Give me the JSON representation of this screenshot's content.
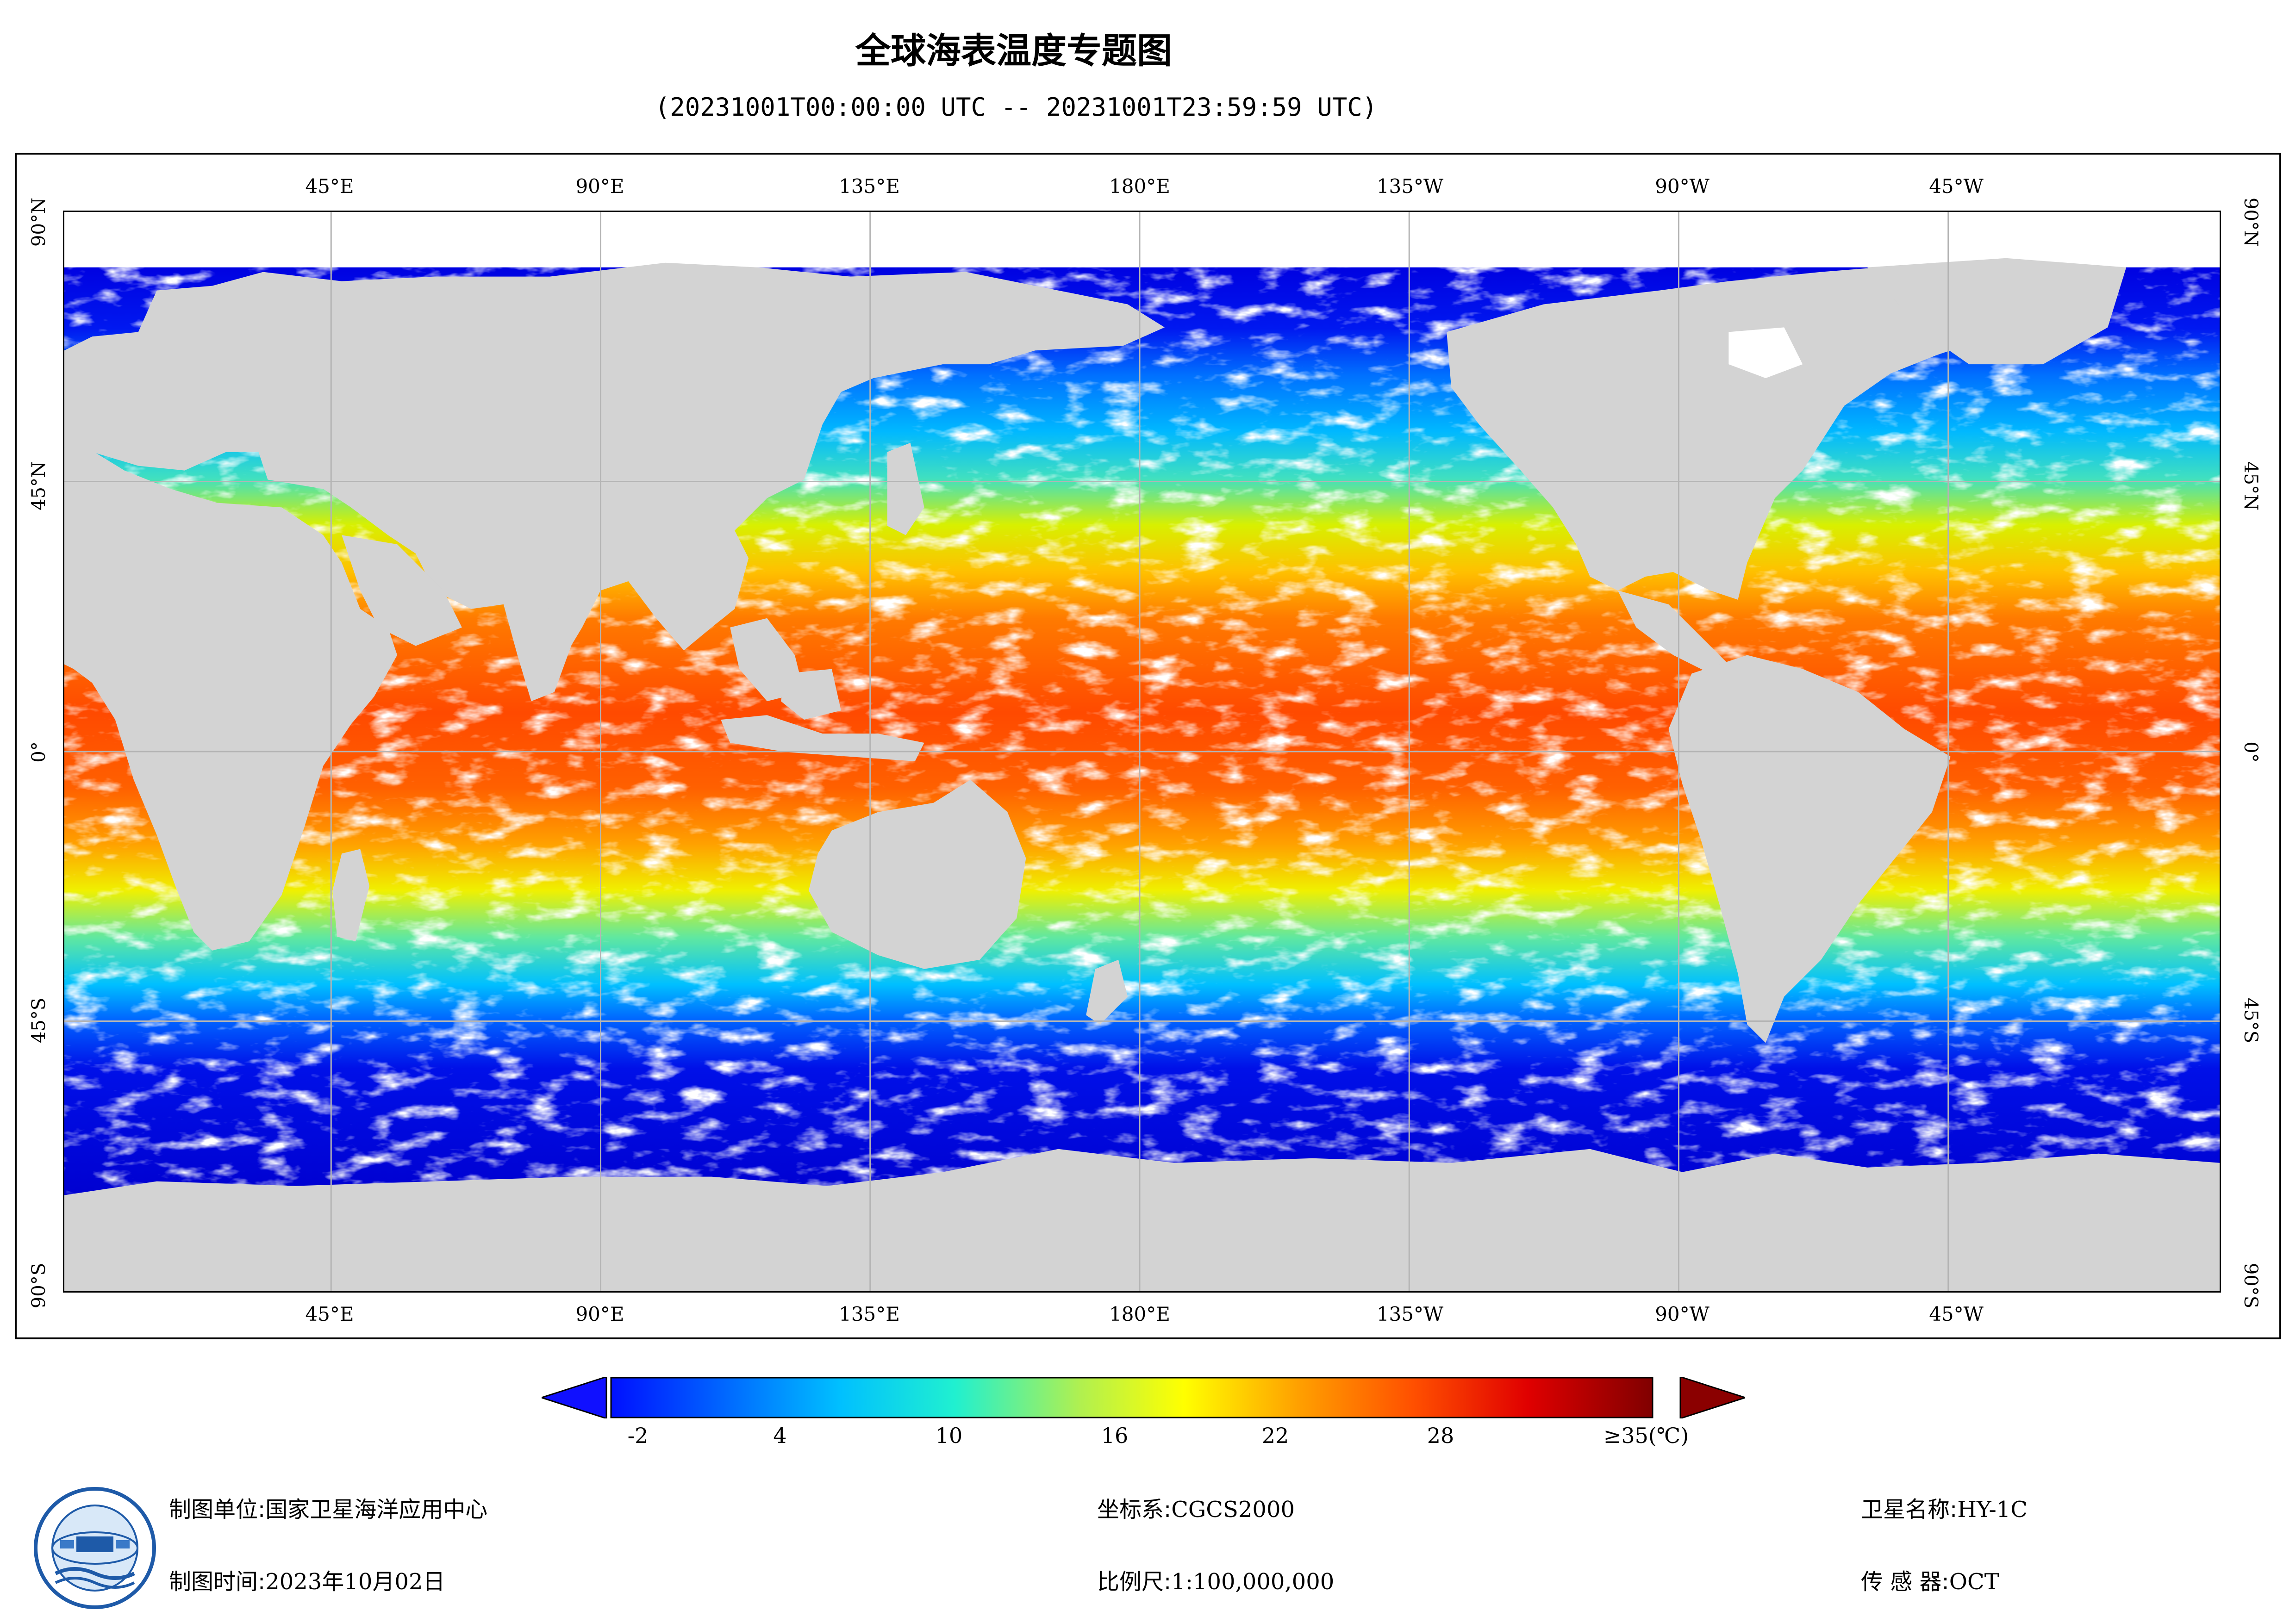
{
  "title": "全球海表温度专题图",
  "subtitle": "(20231001T00:00:00 UTC -- 20231001T23:59:59 UTC)",
  "map": {
    "top_lon_labels": [
      "45°E",
      "90°E",
      "135°E",
      "180°E",
      "135°W",
      "90°W",
      "45°W"
    ],
    "bottom_lon_labels": [
      "45°E",
      "90°E",
      "135°E",
      "180°E",
      "135°W",
      "90°W",
      "45°W"
    ],
    "left_lat_labels": [
      "90°N",
      "45°N",
      "0°",
      "45°S",
      "90°S"
    ],
    "right_lat_labels": [
      "90°N",
      "45°N",
      "0°",
      "45°S",
      "90°S"
    ],
    "colors": {
      "land": "#d3d3d3",
      "no_data": "#ffffff",
      "grid": "#b4b4b4"
    }
  },
  "colorbar": {
    "ticks": [
      "-2",
      "4",
      "10",
      "16",
      "22",
      "28",
      "≥35(℃)"
    ],
    "min": -2,
    "max": 35,
    "under_color": "#1010ff",
    "over_color": "#8b0000"
  },
  "footer": {
    "org_label": "制图单位:",
    "org_value": "国家卫星海洋应用中心",
    "time_label": "制图时间:",
    "time_value": "2023年10月02日",
    "crs_label": "坐标系:",
    "crs_value": "CGCS2000",
    "scale_label": "比例尺:",
    "scale_value": "1:100,000,000",
    "satellite_label": "卫星名称:",
    "satellite_value": "HY-1C",
    "sensor_label": "传 感 器:",
    "sensor_value": "OCT"
  },
  "logo": {
    "icon": "soa-satellite-logo"
  }
}
